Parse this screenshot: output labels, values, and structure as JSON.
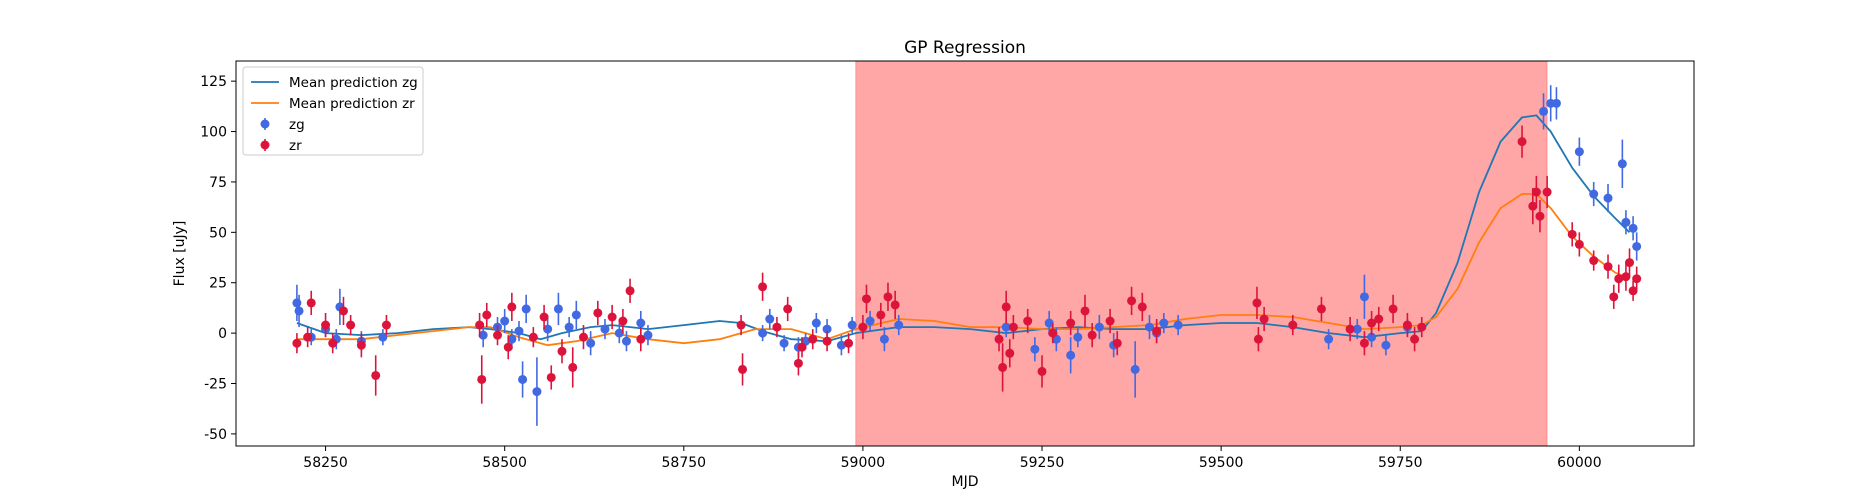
{
  "chart_data": {
    "type": "scatter",
    "title": "GP Regression",
    "xlabel": "MJD",
    "ylabel": "Flux [uJy]",
    "xlim": [
      58125,
      60160
    ],
    "ylim": [
      -56,
      135
    ],
    "xticks": [
      58250,
      58500,
      58750,
      59000,
      59250,
      59500,
      59750,
      60000
    ],
    "yticks": [
      -50,
      -25,
      0,
      25,
      50,
      75,
      100,
      125
    ],
    "grid": false,
    "legend_position": "top-left",
    "shaded_region": {
      "x": [
        58990,
        59955
      ],
      "color": "#ff0000",
      "alpha": 0.35
    },
    "colors": {
      "zg": "#4169e1",
      "zr": "#dc143c",
      "mean_zg": "#1f77b4",
      "mean_zr": "#ff7f0e"
    },
    "legend": [
      {
        "label": "Mean prediction zg",
        "kind": "line",
        "color": "#1f77b4"
      },
      {
        "label": "Mean prediction zr",
        "kind": "line",
        "color": "#ff7f0e"
      },
      {
        "label": "zg",
        "kind": "errorbar",
        "color": "#4169e1"
      },
      {
        "label": "zr",
        "kind": "errorbar",
        "color": "#dc143c"
      }
    ],
    "series": [
      {
        "name": "Mean prediction zg",
        "kind": "line",
        "color": "#1f77b4",
        "points": [
          [
            58210,
            5
          ],
          [
            58250,
            0
          ],
          [
            58300,
            -1
          ],
          [
            58350,
            0
          ],
          [
            58400,
            2
          ],
          [
            58450,
            3
          ],
          [
            58480,
            2
          ],
          [
            58520,
            0
          ],
          [
            58550,
            -3
          ],
          [
            58580,
            0
          ],
          [
            58620,
            3
          ],
          [
            58650,
            4
          ],
          [
            58700,
            2
          ],
          [
            58750,
            4
          ],
          [
            58800,
            6
          ],
          [
            58830,
            5
          ],
          [
            58860,
            1
          ],
          [
            58900,
            -3
          ],
          [
            58950,
            -4
          ],
          [
            58990,
            0
          ],
          [
            59050,
            3
          ],
          [
            59100,
            3
          ],
          [
            59150,
            2
          ],
          [
            59200,
            0
          ],
          [
            59250,
            2
          ],
          [
            59300,
            3
          ],
          [
            59350,
            2
          ],
          [
            59400,
            2
          ],
          [
            59450,
            4
          ],
          [
            59500,
            5
          ],
          [
            59550,
            5
          ],
          [
            59600,
            3
          ],
          [
            59650,
            0
          ],
          [
            59700,
            -2
          ],
          [
            59750,
            0
          ],
          [
            59780,
            1
          ],
          [
            59800,
            10
          ],
          [
            59830,
            35
          ],
          [
            59860,
            70
          ],
          [
            59890,
            95
          ],
          [
            59920,
            107
          ],
          [
            59940,
            108
          ],
          [
            59960,
            100
          ],
          [
            59990,
            82
          ],
          [
            60020,
            68
          ],
          [
            60050,
            57
          ],
          [
            60070,
            50
          ]
        ]
      },
      {
        "name": "Mean prediction zr",
        "kind": "line",
        "color": "#ff7f0e",
        "points": [
          [
            58210,
            -3
          ],
          [
            58250,
            -3
          ],
          [
            58300,
            -3
          ],
          [
            58350,
            -1
          ],
          [
            58400,
            1
          ],
          [
            58450,
            3
          ],
          [
            58480,
            3
          ],
          [
            58520,
            -2
          ],
          [
            58560,
            -6
          ],
          [
            58600,
            -4
          ],
          [
            58650,
            0
          ],
          [
            58700,
            -3
          ],
          [
            58750,
            -5
          ],
          [
            58800,
            -3
          ],
          [
            58850,
            2
          ],
          [
            58900,
            2
          ],
          [
            58950,
            -3
          ],
          [
            58990,
            2
          ],
          [
            59050,
            7
          ],
          [
            59100,
            6
          ],
          [
            59150,
            3
          ],
          [
            59200,
            3
          ],
          [
            59250,
            2
          ],
          [
            59300,
            2
          ],
          [
            59350,
            3
          ],
          [
            59400,
            4
          ],
          [
            59450,
            7
          ],
          [
            59500,
            9
          ],
          [
            59550,
            9
          ],
          [
            59600,
            8
          ],
          [
            59650,
            5
          ],
          [
            59700,
            2
          ],
          [
            59750,
            3
          ],
          [
            59780,
            4
          ],
          [
            59800,
            8
          ],
          [
            59830,
            22
          ],
          [
            59860,
            45
          ],
          [
            59890,
            62
          ],
          [
            59920,
            69
          ],
          [
            59940,
            69
          ],
          [
            59960,
            62
          ],
          [
            59990,
            48
          ],
          [
            60020,
            38
          ],
          [
            60050,
            30
          ],
          [
            60070,
            27
          ]
        ]
      },
      {
        "name": "zg",
        "kind": "errorbar",
        "color": "#4169e1",
        "points": [
          [
            58210,
            15,
            9
          ],
          [
            58213,
            11,
            8
          ],
          [
            58230,
            -2,
            4
          ],
          [
            58250,
            2,
            4
          ],
          [
            58265,
            -3,
            5
          ],
          [
            58270,
            13,
            9
          ],
          [
            58300,
            -4,
            5
          ],
          [
            58330,
            -2,
            4
          ],
          [
            58470,
            -1,
            6
          ],
          [
            58490,
            3,
            5
          ],
          [
            58500,
            6,
            6
          ],
          [
            58510,
            -3,
            5
          ],
          [
            58520,
            1,
            5
          ],
          [
            58525,
            -23,
            9
          ],
          [
            58530,
            12,
            7
          ],
          [
            58545,
            -29,
            17
          ],
          [
            58560,
            2,
            6
          ],
          [
            58575,
            12,
            8
          ],
          [
            58590,
            3,
            5
          ],
          [
            58600,
            9,
            7
          ],
          [
            58620,
            -5,
            6
          ],
          [
            58640,
            2,
            5
          ],
          [
            58660,
            0,
            5
          ],
          [
            58670,
            -4,
            5
          ],
          [
            58690,
            5,
            6
          ],
          [
            58700,
            -1,
            5
          ],
          [
            58860,
            0,
            4
          ],
          [
            58870,
            7,
            5
          ],
          [
            58890,
            -5,
            4
          ],
          [
            58910,
            -7,
            5
          ],
          [
            58920,
            -4,
            4
          ],
          [
            58935,
            5,
            5
          ],
          [
            58950,
            2,
            5
          ],
          [
            58970,
            -6,
            5
          ],
          [
            58985,
            4,
            4
          ],
          [
            59010,
            6,
            5
          ],
          [
            59030,
            -3,
            6
          ],
          [
            59050,
            4,
            5
          ],
          [
            59200,
            3,
            5
          ],
          [
            59240,
            -8,
            6
          ],
          [
            59260,
            5,
            6
          ],
          [
            59270,
            -3,
            6
          ],
          [
            59290,
            -11,
            9
          ],
          [
            59300,
            -2,
            5
          ],
          [
            59330,
            3,
            6
          ],
          [
            59350,
            -6,
            6
          ],
          [
            59380,
            -18,
            14
          ],
          [
            59400,
            3,
            6
          ],
          [
            59410,
            0,
            5
          ],
          [
            59420,
            5,
            5
          ],
          [
            59440,
            4,
            5
          ],
          [
            59650,
            -3,
            5
          ],
          [
            59690,
            2,
            5
          ],
          [
            59700,
            18,
            11
          ],
          [
            59710,
            -2,
            5
          ],
          [
            59730,
            -6,
            5
          ],
          [
            59760,
            3,
            4
          ],
          [
            59950,
            110,
            9
          ],
          [
            59960,
            114,
            9
          ],
          [
            59968,
            114,
            8
          ],
          [
            60000,
            90,
            7
          ],
          [
            60020,
            69,
            6
          ],
          [
            60040,
            67,
            7
          ],
          [
            60060,
            84,
            12
          ],
          [
            60065,
            55,
            6
          ],
          [
            60075,
            52,
            6
          ],
          [
            60080,
            43,
            7
          ]
        ]
      },
      {
        "name": "zr",
        "kind": "errorbar",
        "color": "#dc143c",
        "points": [
          [
            58210,
            -5,
            5
          ],
          [
            58225,
            -2,
            5
          ],
          [
            58230,
            15,
            6
          ],
          [
            58250,
            4,
            6
          ],
          [
            58260,
            -5,
            5
          ],
          [
            58275,
            11,
            7
          ],
          [
            58285,
            4,
            5
          ],
          [
            58300,
            -6,
            6
          ],
          [
            58320,
            -21,
            10
          ],
          [
            58335,
            4,
            5
          ],
          [
            58465,
            4,
            6
          ],
          [
            58468,
            -23,
            12
          ],
          [
            58475,
            9,
            6
          ],
          [
            58490,
            -1,
            5
          ],
          [
            58505,
            -7,
            6
          ],
          [
            58510,
            13,
            7
          ],
          [
            58540,
            -2,
            5
          ],
          [
            58555,
            8,
            6
          ],
          [
            58565,
            -22,
            6
          ],
          [
            58580,
            -9,
            6
          ],
          [
            58595,
            -17,
            10
          ],
          [
            58610,
            -2,
            6
          ],
          [
            58630,
            10,
            6
          ],
          [
            58650,
            8,
            6
          ],
          [
            58665,
            6,
            6
          ],
          [
            58675,
            21,
            6
          ],
          [
            58690,
            -3,
            6
          ],
          [
            58830,
            4,
            5
          ],
          [
            58832,
            -18,
            8
          ],
          [
            58860,
            23,
            7
          ],
          [
            58880,
            3,
            5
          ],
          [
            58895,
            12,
            6
          ],
          [
            58910,
            -15,
            6
          ],
          [
            58915,
            -7,
            5
          ],
          [
            58930,
            -3,
            5
          ],
          [
            58950,
            -4,
            5
          ],
          [
            58980,
            -5,
            5
          ],
          [
            59000,
            3,
            6
          ],
          [
            59005,
            17,
            7
          ],
          [
            59025,
            9,
            6
          ],
          [
            59035,
            18,
            7
          ],
          [
            59045,
            14,
            7
          ],
          [
            59190,
            -3,
            6
          ],
          [
            59195,
            -17,
            12
          ],
          [
            59200,
            13,
            8
          ],
          [
            59205,
            -10,
            7
          ],
          [
            59210,
            3,
            6
          ],
          [
            59230,
            6,
            6
          ],
          [
            59250,
            -19,
            8
          ],
          [
            59265,
            0,
            5
          ],
          [
            59290,
            5,
            6
          ],
          [
            59310,
            11,
            8
          ],
          [
            59320,
            -1,
            6
          ],
          [
            59345,
            6,
            6
          ],
          [
            59355,
            -5,
            6
          ],
          [
            59375,
            16,
            7
          ],
          [
            59390,
            13,
            7
          ],
          [
            59410,
            1,
            6
          ],
          [
            59550,
            15,
            8
          ],
          [
            59552,
            -3,
            6
          ],
          [
            59560,
            7,
            6
          ],
          [
            59600,
            4,
            5
          ],
          [
            59640,
            12,
            6
          ],
          [
            59680,
            2,
            6
          ],
          [
            59700,
            -5,
            6
          ],
          [
            59710,
            5,
            6
          ],
          [
            59720,
            7,
            6
          ],
          [
            59740,
            12,
            7
          ],
          [
            59760,
            4,
            6
          ],
          [
            59770,
            -3,
            6
          ],
          [
            59780,
            3,
            5
          ],
          [
            59920,
            95,
            8
          ],
          [
            59935,
            63,
            9
          ],
          [
            59940,
            70,
            8
          ],
          [
            59945,
            58,
            8
          ],
          [
            59955,
            70,
            8
          ],
          [
            59990,
            49,
            6
          ],
          [
            60000,
            44,
            6
          ],
          [
            60020,
            36,
            5
          ],
          [
            60040,
            33,
            6
          ],
          [
            60048,
            18,
            6
          ],
          [
            60055,
            27,
            7
          ],
          [
            60065,
            28,
            7
          ],
          [
            60070,
            35,
            7
          ],
          [
            60075,
            21,
            5
          ],
          [
            60080,
            27,
            6
          ]
        ]
      }
    ]
  }
}
